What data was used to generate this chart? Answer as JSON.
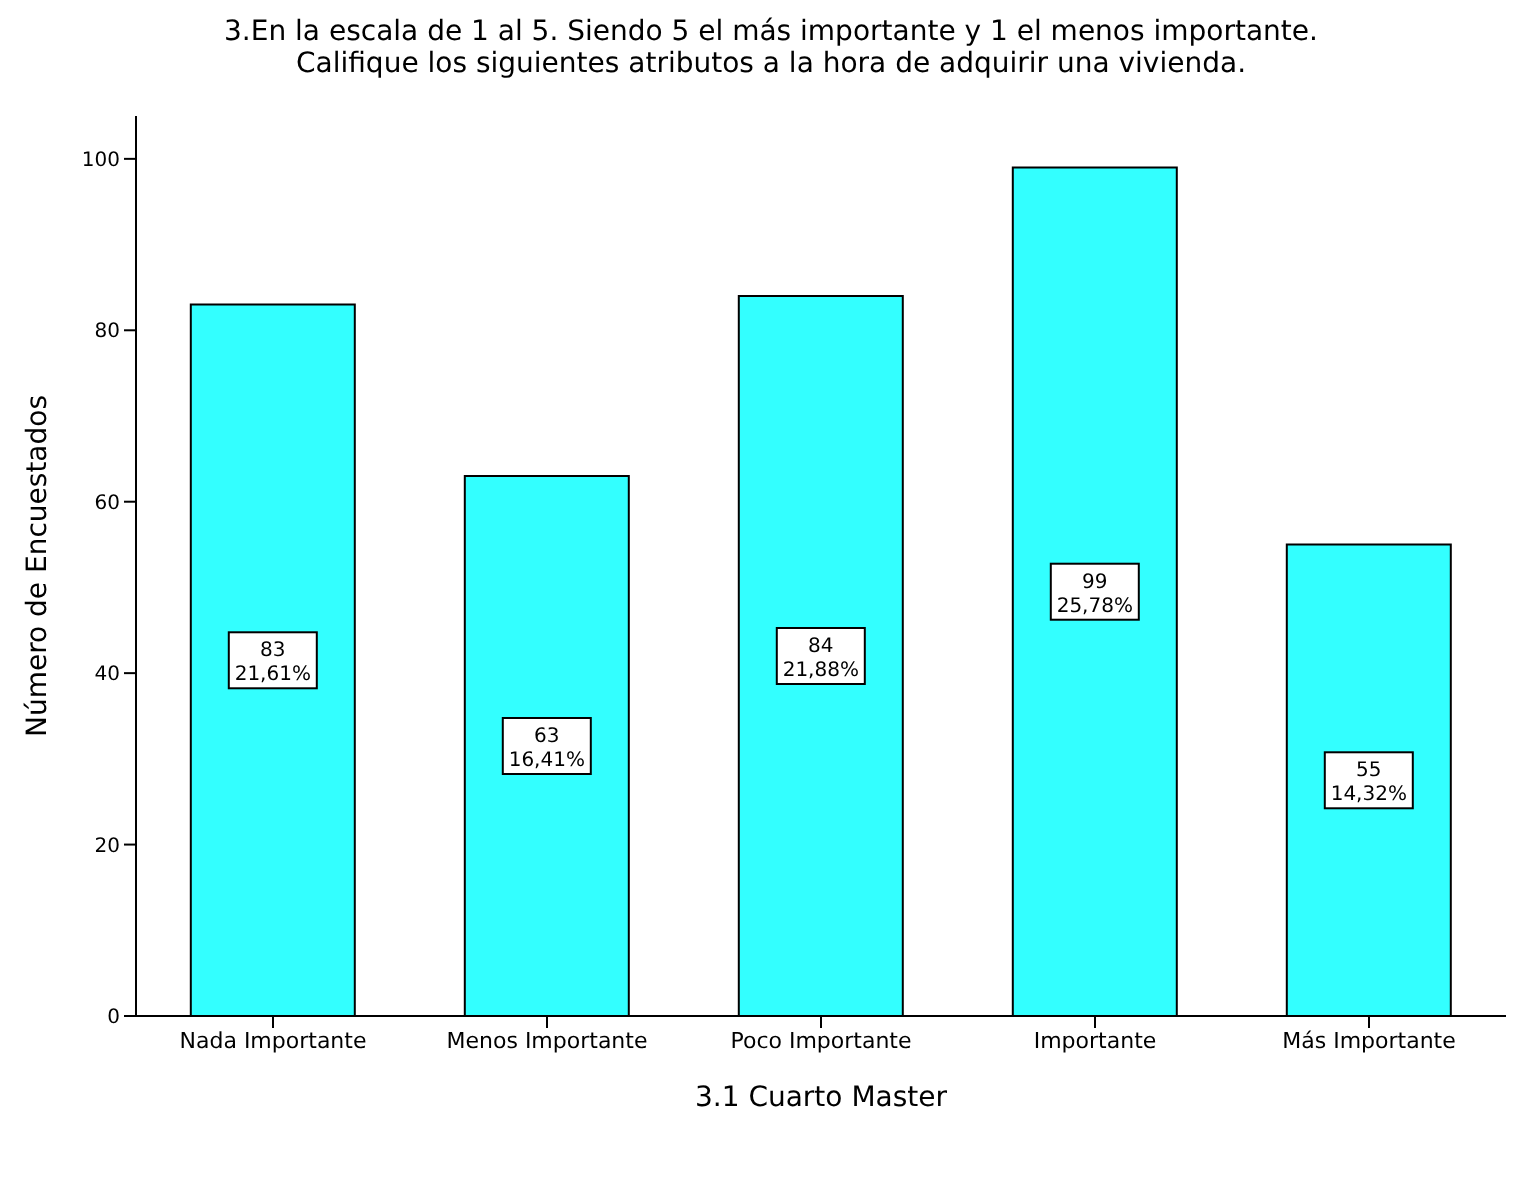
{
  "chart_data": {
    "type": "bar",
    "title": "3.En la escala de 1 al 5. Siendo 5 el más importante y 1 el menos importante.\nCalifique los siguientes atributos a la hora de adquirir una vivienda.",
    "xlabel": "3.1 Cuarto Master",
    "ylabel": "Número de Encuestados",
    "categories": [
      "Nada Importante",
      "Menos Importante",
      "Poco Importante",
      "Importante",
      "Más Importante"
    ],
    "values": [
      83,
      63,
      84,
      99,
      55
    ],
    "value_labels": [
      "83\n21,61%",
      "63\n16,41%",
      "84\n21,88%",
      "99\n25,78%",
      "55\n14,32%"
    ],
    "color": "#33ffff",
    "ylim": [
      0,
      105
    ],
    "yticks": [
      0,
      20,
      40,
      60,
      80,
      100
    ],
    "grid": false
  }
}
